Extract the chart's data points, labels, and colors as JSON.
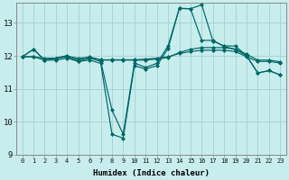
{
  "xlabel": "Humidex (Indice chaleur)",
  "background_color": "#c8eded",
  "grid_color": "#aad4d4",
  "line_color": "#006666",
  "ylim": [
    9,
    13.6
  ],
  "xlim": [
    -0.5,
    23.5
  ],
  "yticks": [
    9,
    10,
    11,
    12,
    13
  ],
  "xticks": [
    0,
    1,
    2,
    3,
    4,
    5,
    6,
    7,
    8,
    9,
    10,
    11,
    12,
    13,
    14,
    15,
    16,
    17,
    18,
    19,
    20,
    21,
    22,
    23
  ],
  "line1": [
    11.97,
    12.2,
    11.87,
    11.93,
    11.97,
    11.83,
    11.93,
    11.83,
    10.35,
    9.62,
    11.78,
    11.65,
    11.77,
    12.3,
    13.44,
    13.43,
    13.55,
    12.45,
    12.3,
    12.3,
    12.0,
    11.48,
    11.55,
    11.42
  ],
  "line2": [
    11.97,
    12.2,
    11.87,
    11.93,
    12.01,
    11.87,
    11.97,
    11.87,
    11.87,
    11.87,
    11.87,
    11.87,
    11.9,
    11.95,
    12.1,
    12.2,
    12.25,
    12.25,
    12.25,
    12.2,
    12.05,
    11.87,
    11.87,
    11.82
  ],
  "line3": [
    11.97,
    11.97,
    11.93,
    11.93,
    11.98,
    11.93,
    11.95,
    11.88,
    11.88,
    11.88,
    11.88,
    11.9,
    11.93,
    11.97,
    12.07,
    12.13,
    12.17,
    12.17,
    12.17,
    12.13,
    11.97,
    11.83,
    11.83,
    11.78
  ],
  "line4": [
    11.97,
    11.97,
    11.87,
    11.87,
    11.93,
    11.83,
    11.87,
    11.77,
    9.62,
    9.5,
    11.7,
    11.6,
    11.7,
    12.22,
    13.44,
    13.43,
    12.47,
    12.47,
    12.28,
    12.2,
    12.0,
    11.48,
    11.55,
    11.42
  ],
  "marker": "D",
  "markersize": 2.5,
  "linewidth": 0.85
}
